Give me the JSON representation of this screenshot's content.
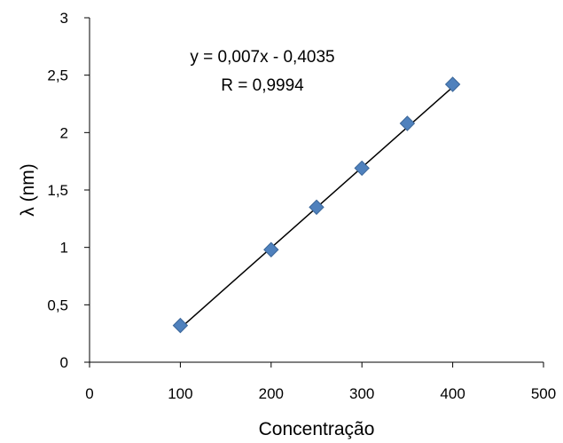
{
  "chart_data": {
    "type": "scatter",
    "title": "",
    "xlabel": "Concentração",
    "ylabel": "λ (nm)",
    "xlim": [
      0,
      500
    ],
    "ylim": [
      0,
      3
    ],
    "x_ticks": [
      "0",
      "100",
      "200",
      "300",
      "400",
      "500"
    ],
    "y_ticks": [
      "0",
      "0,5",
      "1",
      "1,5",
      "2",
      "2,5",
      "3"
    ],
    "grid": false,
    "legend": "none",
    "marker": "diamond",
    "series": [
      {
        "x": [
          100,
          200,
          250,
          300,
          350,
          400
        ],
        "y": [
          0.32,
          0.98,
          1.35,
          1.69,
          2.08,
          2.42
        ]
      }
    ],
    "trendline": {
      "type": "linear",
      "slope": 0.007,
      "intercept": -0.4035,
      "x_range": [
        100,
        400
      ]
    },
    "annotations": [
      "y = 0,007x - 0,4035",
      "R = 0,9994"
    ],
    "colors": {
      "marker": "#4F81BD",
      "line": "#000000",
      "axis": "#000000"
    }
  }
}
